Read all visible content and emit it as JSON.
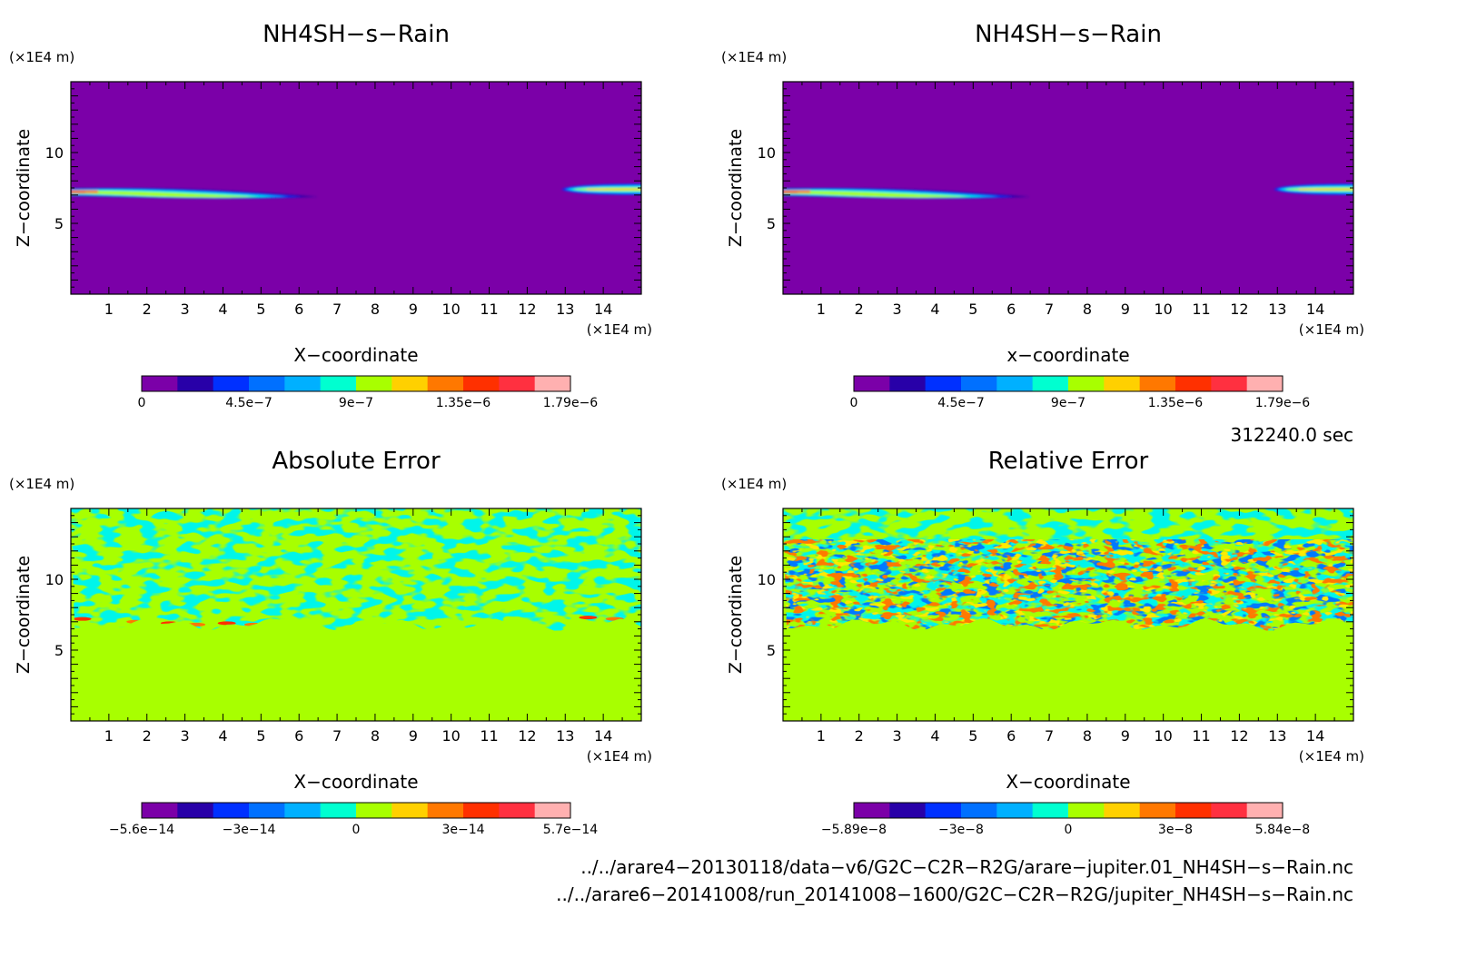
{
  "chart_data": [
    {
      "type": "heatmap",
      "title": "NH4SH−s−Rain",
      "xlabel": "X−coordinate",
      "ylabel": "Z−coordinate",
      "x_unit": "(×1E4 m)",
      "y_unit": "(×1E4 m)",
      "xlim": [
        0,
        15
      ],
      "ylim": [
        0,
        15
      ],
      "x_ticks": [
        "1",
        "2",
        "3",
        "4",
        "5",
        "6",
        "7",
        "8",
        "9",
        "10",
        "11",
        "12",
        "13",
        "14"
      ],
      "y_ticks": [
        "5",
        "10"
      ],
      "background_color": "#7b00a8",
      "features": [
        {
          "kind": "plume",
          "x_start": 0,
          "x_end": 6.5,
          "z": 7.2,
          "peak": "1.79e-6"
        },
        {
          "kind": "plume",
          "x_start": 12.9,
          "x_end": 15,
          "z": 7.4,
          "peak": "1.5e-6"
        }
      ],
      "colorbar": {
        "tick_labels": [
          "0",
          "4.5e−7",
          "9e−7",
          "1.35e−6",
          "1.79e−6"
        ],
        "colors": [
          "#7b00a8",
          "#2800a8",
          "#0030ff",
          "#0070ff",
          "#00b0ff",
          "#00ffd0",
          "#a8ff00",
          "#ffd000",
          "#ff7800",
          "#ff3000",
          "#ff3040",
          "#ffb0b0"
        ]
      }
    },
    {
      "type": "heatmap",
      "title": "NH4SH−s−Rain",
      "xlabel": "x−coordinate",
      "ylabel": "Z−coordinate",
      "x_unit": "(×1E4 m)",
      "y_unit": "(×1E4 m)",
      "xlim": [
        0,
        15
      ],
      "ylim": [
        0,
        15
      ],
      "x_ticks": [
        "1",
        "2",
        "3",
        "4",
        "5",
        "6",
        "7",
        "8",
        "9",
        "10",
        "11",
        "12",
        "13",
        "14"
      ],
      "y_ticks": [
        "5",
        "10"
      ],
      "background_color": "#7b00a8",
      "features": [
        {
          "kind": "plume",
          "x_start": 0,
          "x_end": 6.5,
          "z": 7.2,
          "peak": "1.79e-6"
        },
        {
          "kind": "plume",
          "x_start": 12.9,
          "x_end": 15,
          "z": 7.4,
          "peak": "1.5e-6"
        }
      ],
      "colorbar": {
        "tick_labels": [
          "0",
          "4.5e−7",
          "9e−7",
          "1.35e−6",
          "1.79e−6"
        ],
        "colors": [
          "#7b00a8",
          "#2800a8",
          "#0030ff",
          "#0070ff",
          "#00b0ff",
          "#00ffd0",
          "#a8ff00",
          "#ffd000",
          "#ff7800",
          "#ff3000",
          "#ff3040",
          "#ffb0b0"
        ]
      }
    },
    {
      "type": "heatmap",
      "title": "Absolute Error",
      "xlabel": "X−coordinate",
      "ylabel": "Z−coordinate",
      "x_unit": "(×1E4 m)",
      "y_unit": "(×1E4 m)",
      "xlim": [
        0,
        15
      ],
      "ylim": [
        0,
        15
      ],
      "x_ticks": [
        "1",
        "2",
        "3",
        "4",
        "5",
        "6",
        "7",
        "8",
        "9",
        "10",
        "11",
        "12",
        "13",
        "14"
      ],
      "y_ticks": [
        "5",
        "10"
      ],
      "background_color": "#a8ff00",
      "noise_band_z": [
        6.8,
        15
      ],
      "noise_colors": [
        "#00e8d0"
      ],
      "colorbar": {
        "tick_labels": [
          "−5.6e−14",
          "−3e−14",
          "0",
          "3e−14",
          "5.7e−14"
        ],
        "colors": [
          "#7b00a8",
          "#2800a8",
          "#0030ff",
          "#0070ff",
          "#00b0ff",
          "#00ffd0",
          "#a8ff00",
          "#ffd000",
          "#ff7800",
          "#ff3000",
          "#ff3040",
          "#ffb0b0"
        ]
      }
    },
    {
      "type": "heatmap",
      "title": "Relative Error",
      "xlabel": "X−coordinate",
      "ylabel": "Z−coordinate",
      "x_unit": "(×1E4 m)",
      "y_unit": "(×1E4 m)",
      "xlim": [
        0,
        15
      ],
      "ylim": [
        0,
        15
      ],
      "x_ticks": [
        "1",
        "2",
        "3",
        "4",
        "5",
        "6",
        "7",
        "8",
        "9",
        "10",
        "11",
        "12",
        "13",
        "14"
      ],
      "y_ticks": [
        "5",
        "10"
      ],
      "background_color": "#a8ff00",
      "noise_band_z": [
        6.8,
        12.8
      ],
      "noise_colors": [
        "#00e8d0",
        "#0030ff",
        "#ff3000",
        "#ffd000"
      ],
      "colorbar": {
        "tick_labels": [
          "−5.89e−8",
          "−3e−8",
          "0",
          "3e−8",
          "5.84e−8"
        ],
        "colors": [
          "#7b00a8",
          "#2800a8",
          "#0030ff",
          "#0070ff",
          "#00b0ff",
          "#00ffd0",
          "#a8ff00",
          "#ffd000",
          "#ff7800",
          "#ff3000",
          "#ff3040",
          "#ffb0b0"
        ]
      }
    }
  ],
  "time_label": "312240.0 sec",
  "file_paths": [
    "../../arare4−20130118/data−v6/G2C−C2R−R2G/arare−jupiter.01_NH4SH−s−Rain.nc",
    "../../arare6−20141008/run_20141008−1600/G2C−C2R−R2G/jupiter_NH4SH−s−Rain.nc"
  ]
}
